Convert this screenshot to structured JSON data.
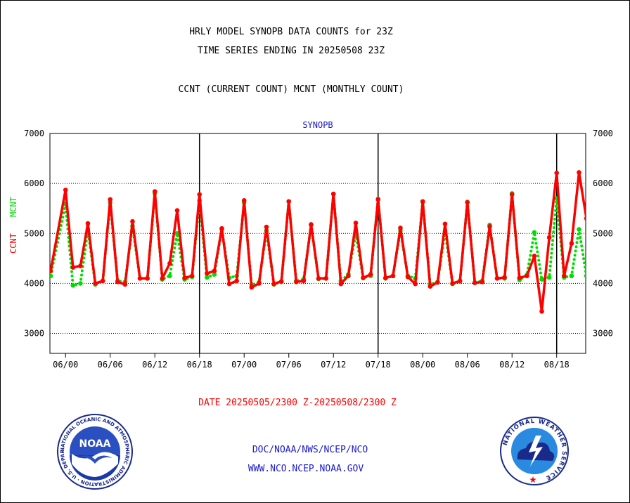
{
  "header": {
    "line1": "HRLY MODEL SYNOPB DATA COUNTS for 23Z",
    "line2": "TIME SERIES ENDING IN 20250508 23Z",
    "line3": "CCNT (CURRENT COUNT) MCNT (MONTHLY COUNT)"
  },
  "footer": {
    "date_range": "DATE 20250505/2300 Z-20250508/2300 Z",
    "org": "DOC/NOAA/NWS/NCEP/NCO",
    "url": "WWW.NCO.NCEP.NOAA.GOV"
  },
  "logos": {
    "noaa_text": "NOAA",
    "noaa_ring": "NATIONAL OCEANIC AND ATMOSPHERIC ADMINISTRATION · U.S. DEPARTMENT OF COMMERCE ·",
    "nws_ring": "NATIONAL WEATHER SERVICE"
  },
  "colors": {
    "ccnt": "#ff0000",
    "mcnt": "#00dd00",
    "title_blue": "#1a1acc",
    "date_red": "#ff0000"
  },
  "chart_data": {
    "type": "line",
    "title": "SYNOPB",
    "ylabel_ccnt": "CCNT",
    "ylabel_mcnt": "MCNT",
    "ylim": [
      2600,
      7000
    ],
    "yticks": [
      3000,
      4000,
      5000,
      6000,
      7000
    ],
    "xlim": [
      -0.7,
      23.3
    ],
    "xticks": [
      {
        "x": 0,
        "label": "06/00"
      },
      {
        "x": 2,
        "label": "06/06"
      },
      {
        "x": 4,
        "label": "06/12"
      },
      {
        "x": 6,
        "label": "06/18"
      },
      {
        "x": 8,
        "label": "07/00"
      },
      {
        "x": 10,
        "label": "07/06"
      },
      {
        "x": 12,
        "label": "07/12"
      },
      {
        "x": 14,
        "label": "07/18"
      },
      {
        "x": 16,
        "label": "08/00"
      },
      {
        "x": 18,
        "label": "08/06"
      },
      {
        "x": 20,
        "label": "08/12"
      },
      {
        "x": 22,
        "label": "08/18"
      }
    ],
    "day_separators": [
      6,
      14,
      22
    ],
    "series": [
      {
        "name": "CCNT",
        "style": "solid",
        "points": [
          [
            -0.667,
            4250
          ],
          [
            0,
            5870
          ],
          [
            0.333,
            4320
          ],
          [
            0.667,
            4350
          ],
          [
            1,
            5200
          ],
          [
            1.333,
            4000
          ],
          [
            1.667,
            4050
          ],
          [
            2,
            5680
          ],
          [
            2.333,
            4030
          ],
          [
            2.667,
            3980
          ],
          [
            3,
            5240
          ],
          [
            3.333,
            4100
          ],
          [
            3.667,
            4100
          ],
          [
            4,
            5840
          ],
          [
            4.333,
            4100
          ],
          [
            4.667,
            4400
          ],
          [
            5,
            5460
          ],
          [
            5.333,
            4110
          ],
          [
            5.667,
            4150
          ],
          [
            6,
            5780
          ],
          [
            6.333,
            4200
          ],
          [
            6.667,
            4250
          ],
          [
            7,
            5100
          ],
          [
            7.333,
            3990
          ],
          [
            7.667,
            4050
          ],
          [
            8,
            5660
          ],
          [
            8.333,
            3920
          ],
          [
            8.667,
            4000
          ],
          [
            9,
            5130
          ],
          [
            9.333,
            3990
          ],
          [
            9.667,
            4040
          ],
          [
            10,
            5640
          ],
          [
            10.333,
            4030
          ],
          [
            10.667,
            4050
          ],
          [
            11,
            5180
          ],
          [
            11.333,
            4100
          ],
          [
            11.667,
            4100
          ],
          [
            12,
            5790
          ],
          [
            12.333,
            3990
          ],
          [
            12.667,
            4150
          ],
          [
            13,
            5210
          ],
          [
            13.333,
            4110
          ],
          [
            13.667,
            4180
          ],
          [
            14,
            5680
          ],
          [
            14.333,
            4110
          ],
          [
            14.667,
            4150
          ],
          [
            15,
            5110
          ],
          [
            15.333,
            4130
          ],
          [
            15.667,
            3990
          ],
          [
            16,
            5640
          ],
          [
            16.333,
            3940
          ],
          [
            16.667,
            4020
          ],
          [
            17,
            5190
          ],
          [
            17.333,
            4000
          ],
          [
            17.667,
            4050
          ],
          [
            18,
            5620
          ],
          [
            18.333,
            4010
          ],
          [
            18.667,
            4030
          ],
          [
            19,
            5140
          ],
          [
            19.333,
            4100
          ],
          [
            19.667,
            4120
          ],
          [
            20,
            5780
          ],
          [
            20.333,
            4110
          ],
          [
            20.667,
            4150
          ],
          [
            21,
            4550
          ],
          [
            21.333,
            3440
          ],
          [
            21.667,
            4920
          ],
          [
            22,
            6210
          ],
          [
            22.333,
            4150
          ],
          [
            22.667,
            4800
          ],
          [
            23,
            6220
          ],
          [
            23.333,
            5300
          ],
          [
            23.667,
            5030
          ]
        ]
      },
      {
        "name": "MCNT",
        "style": "dotted",
        "points": [
          [
            -0.667,
            4150
          ],
          [
            0,
            5590
          ],
          [
            0.333,
            3960
          ],
          [
            0.667,
            4000
          ],
          [
            1,
            5080
          ],
          [
            1.333,
            3980
          ],
          [
            1.667,
            4050
          ],
          [
            2,
            5620
          ],
          [
            2.333,
            4050
          ],
          [
            2.667,
            4030
          ],
          [
            3,
            5150
          ],
          [
            3.333,
            4100
          ],
          [
            3.667,
            4100
          ],
          [
            4,
            5800
          ],
          [
            4.333,
            4080
          ],
          [
            4.667,
            4150
          ],
          [
            5,
            5000
          ],
          [
            5.333,
            4080
          ],
          [
            5.667,
            4130
          ],
          [
            6,
            5660
          ],
          [
            6.333,
            4120
          ],
          [
            6.667,
            4180
          ],
          [
            7,
            5080
          ],
          [
            7.333,
            4110
          ],
          [
            7.667,
            4150
          ],
          [
            8,
            5620
          ],
          [
            8.333,
            3970
          ],
          [
            8.667,
            4020
          ],
          [
            9,
            5060
          ],
          [
            9.333,
            3980
          ],
          [
            9.667,
            4030
          ],
          [
            10,
            5640
          ],
          [
            10.333,
            4050
          ],
          [
            10.667,
            4080
          ],
          [
            11,
            5170
          ],
          [
            11.333,
            4090
          ],
          [
            11.667,
            4100
          ],
          [
            12,
            5790
          ],
          [
            12.333,
            4050
          ],
          [
            12.667,
            4180
          ],
          [
            13,
            5000
          ],
          [
            13.333,
            4110
          ],
          [
            13.667,
            4150
          ],
          [
            14,
            5690
          ],
          [
            14.333,
            4100
          ],
          [
            14.667,
            4150
          ],
          [
            15,
            5060
          ],
          [
            15.333,
            4150
          ],
          [
            15.667,
            4100
          ],
          [
            16,
            5630
          ],
          [
            16.333,
            3980
          ],
          [
            16.667,
            4030
          ],
          [
            17,
            5050
          ],
          [
            17.333,
            3990
          ],
          [
            17.667,
            4040
          ],
          [
            18,
            5630
          ],
          [
            18.333,
            4020
          ],
          [
            18.667,
            4050
          ],
          [
            19,
            5170
          ],
          [
            19.333,
            4100
          ],
          [
            19.667,
            4100
          ],
          [
            20,
            5800
          ],
          [
            20.333,
            4070
          ],
          [
            20.667,
            4170
          ],
          [
            21,
            5020
          ],
          [
            21.333,
            4080
          ],
          [
            21.667,
            4120
          ],
          [
            22,
            5700
          ],
          [
            22.333,
            4120
          ],
          [
            22.667,
            4150
          ],
          [
            23,
            5080
          ],
          [
            23.333,
            4150
          ],
          [
            23.667,
            4180
          ]
        ]
      }
    ]
  }
}
